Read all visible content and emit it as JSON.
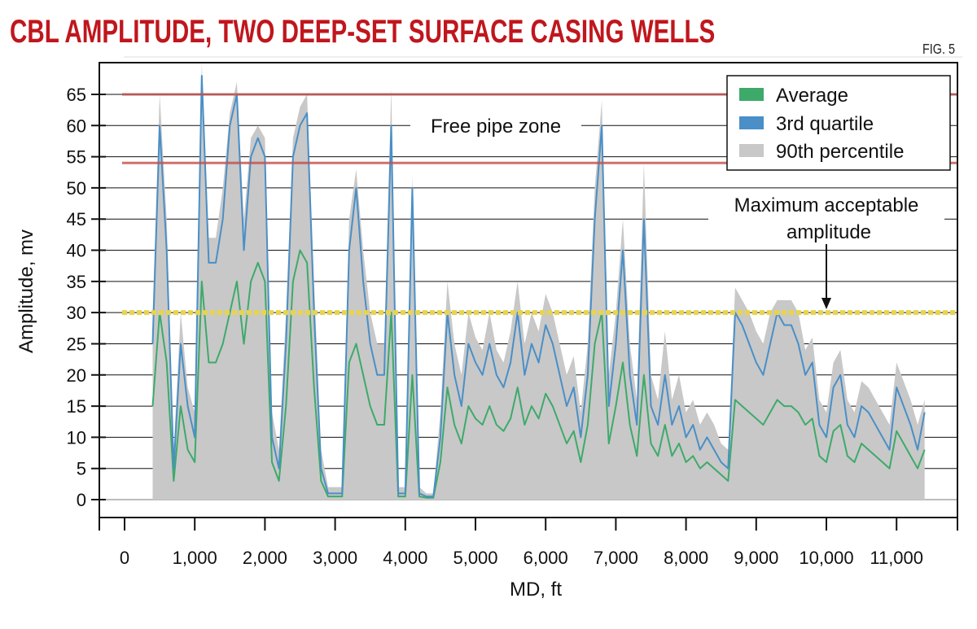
{
  "header": {
    "title": "CBL AMPLITUDE, TWO DEEP-SET SURFACE CASING WELLS",
    "figure_label": "FIG. 5"
  },
  "chart_data": {
    "type": "area",
    "title": "CBL AMPLITUDE, TWO DEEP-SET SURFACE CASING WELLS",
    "xlabel": "MD, ft",
    "ylabel": "Amplitude, mv",
    "xlim": [
      -350,
      11750
    ],
    "ylim": [
      -3,
      70
    ],
    "x_ticks": [
      0,
      1000,
      2000,
      3000,
      4000,
      5000,
      6000,
      7000,
      8000,
      9000,
      10000,
      11000
    ],
    "x_tick_labels": [
      "0",
      "1,000",
      "2,000",
      "3,000",
      "4,000",
      "5,000",
      "6,000",
      "7,000",
      "8,000",
      "9,000",
      "10,000",
      "11,000"
    ],
    "y_ticks": [
      0,
      5,
      10,
      15,
      20,
      25,
      30,
      35,
      40,
      45,
      50,
      55,
      60,
      65
    ],
    "y_tick_labels": [
      "0",
      "5",
      "10",
      "15",
      "20",
      "25",
      "30",
      "35",
      "40",
      "45",
      "50",
      "55",
      "60",
      "65"
    ],
    "grid": true,
    "legend_position": "top-right",
    "x": [
      400,
      500,
      600,
      700,
      800,
      900,
      1000,
      1100,
      1200,
      1300,
      1400,
      1500,
      1600,
      1700,
      1800,
      1900,
      2000,
      2100,
      2200,
      2300,
      2400,
      2500,
      2600,
      2700,
      2800,
      2900,
      3000,
      3100,
      3200,
      3300,
      3400,
      3500,
      3600,
      3700,
      3800,
      3900,
      4000,
      4100,
      4200,
      4300,
      4400,
      4500,
      4600,
      4700,
      4800,
      4900,
      5000,
      5100,
      5200,
      5300,
      5400,
      5500,
      5600,
      5700,
      5800,
      5900,
      6000,
      6100,
      6200,
      6300,
      6400,
      6500,
      6600,
      6700,
      6800,
      6900,
      7000,
      7100,
      7200,
      7300,
      7400,
      7500,
      7600,
      7700,
      7800,
      7900,
      8000,
      8100,
      8200,
      8300,
      8400,
      8500,
      8600,
      8700,
      8800,
      8900,
      9000,
      9100,
      9200,
      9300,
      9400,
      9500,
      9600,
      9700,
      9800,
      9900,
      10000,
      10100,
      10200,
      10300,
      10400,
      10500,
      10600,
      10700,
      10800,
      10900,
      11000,
      11100,
      11200,
      11300,
      11400
    ],
    "series": [
      {
        "name": "90th percentile",
        "color": "#c8c8c8",
        "values": [
          30,
          65,
          45,
          8,
          30,
          18,
          14,
          70,
          42,
          42,
          50,
          62,
          67,
          45,
          58,
          60,
          58,
          14,
          8,
          30,
          58,
          63,
          65,
          35,
          8,
          2,
          2,
          2,
          45,
          53,
          40,
          30,
          25,
          25,
          66,
          2,
          2,
          52,
          2,
          1,
          1,
          14,
          35,
          25,
          20,
          30,
          26,
          24,
          30,
          24,
          22,
          27,
          35,
          25,
          30,
          27,
          33,
          30,
          25,
          20,
          23,
          14,
          25,
          50,
          64,
          20,
          30,
          45,
          25,
          16,
          54,
          20,
          16,
          27,
          16,
          20,
          14,
          16,
          12,
          14,
          12,
          9,
          8,
          34,
          32,
          30,
          27,
          25,
          30,
          32,
          32,
          32,
          30,
          24,
          26,
          16,
          14,
          22,
          24,
          16,
          14,
          19,
          18,
          16,
          14,
          12,
          22,
          19,
          16,
          12,
          16
        ]
      },
      {
        "name": "3rd quartile",
        "color": "#4a8fc7",
        "values": [
          25,
          60,
          40,
          5,
          25,
          15,
          10,
          68,
          38,
          38,
          45,
          60,
          65,
          40,
          55,
          58,
          55,
          10,
          5,
          25,
          55,
          60,
          62,
          30,
          5,
          1,
          1,
          1,
          40,
          50,
          35,
          25,
          20,
          20,
          60,
          1,
          1,
          50,
          1,
          0.5,
          0.5,
          10,
          30,
          20,
          15,
          25,
          22,
          20,
          25,
          20,
          18,
          22,
          30,
          20,
          25,
          22,
          28,
          25,
          20,
          15,
          18,
          10,
          20,
          45,
          60,
          15,
          25,
          40,
          20,
          12,
          45,
          15,
          12,
          20,
          12,
          15,
          10,
          12,
          8,
          10,
          8,
          6,
          5,
          30,
          28,
          25,
          22,
          20,
          25,
          30,
          28,
          28,
          25,
          20,
          22,
          12,
          10,
          18,
          20,
          12,
          10,
          15,
          14,
          12,
          10,
          8,
          18,
          15,
          12,
          8,
          14
        ]
      },
      {
        "name": "Average",
        "color": "#3daa6a",
        "values": [
          15,
          30,
          22,
          3,
          15,
          8,
          6,
          35,
          22,
          22,
          25,
          30,
          35,
          25,
          35,
          38,
          35,
          6,
          3,
          15,
          35,
          40,
          38,
          18,
          3,
          0.5,
          0.5,
          0.5,
          22,
          25,
          20,
          15,
          12,
          12,
          30,
          0.5,
          0.5,
          20,
          0.5,
          0.3,
          0.3,
          6,
          18,
          12,
          9,
          15,
          13,
          12,
          15,
          12,
          11,
          13,
          18,
          12,
          15,
          13,
          17,
          15,
          12,
          9,
          11,
          6,
          12,
          25,
          30,
          9,
          15,
          22,
          12,
          7,
          20,
          9,
          7,
          12,
          7,
          9,
          6,
          7,
          5,
          6,
          5,
          4,
          3,
          16,
          15,
          14,
          13,
          12,
          14,
          16,
          15,
          15,
          14,
          12,
          13,
          7,
          6,
          11,
          12,
          7,
          6,
          9,
          8,
          7,
          6,
          5,
          11,
          9,
          7,
          5,
          8
        ]
      }
    ],
    "reference_lines": [
      {
        "value": 65,
        "color": "#c0504d"
      },
      {
        "value": 54,
        "color": "#c0504d"
      },
      {
        "value": 30,
        "color": "#e8d44d"
      }
    ],
    "annotations": {
      "free_pipe": "Free pipe zone",
      "max_line1": "Maximum acceptable",
      "max_line2": "amplitude"
    }
  }
}
